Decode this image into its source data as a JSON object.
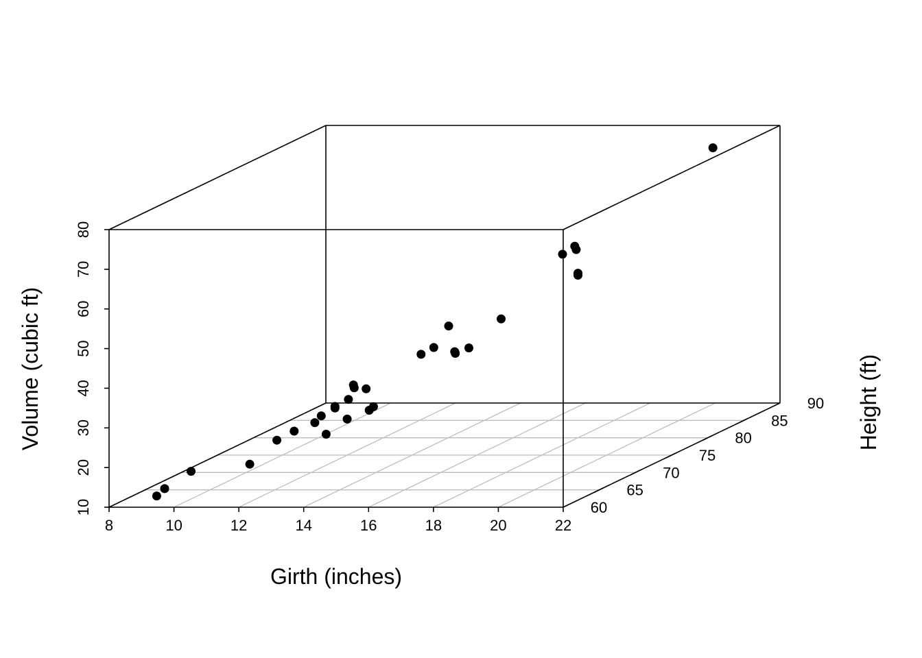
{
  "chart_data": {
    "type": "scatter",
    "subtype": "3d-scatter",
    "title": "",
    "xlabel": "Girth (inches)",
    "ylabel": "Height (ft)",
    "zlabel": "Volume (cubic ft)",
    "xlim": [
      8,
      22
    ],
    "ylim": [
      60,
      90
    ],
    "zlim": [
      10,
      80
    ],
    "xticks": [
      "8",
      "10",
      "12",
      "14",
      "16",
      "18",
      "20",
      "22"
    ],
    "yticks": [
      "60",
      "65",
      "70",
      "75",
      "80",
      "85",
      "90"
    ],
    "zticks": [
      "10",
      "20",
      "30",
      "40",
      "50",
      "60",
      "70",
      "80"
    ],
    "grid": "floor",
    "point_color": "#000000",
    "grid_color": "#bebebe",
    "points": [
      {
        "x": 8.3,
        "y": 70,
        "z": 10.3
      },
      {
        "x": 8.6,
        "y": 65,
        "z": 10.3
      },
      {
        "x": 8.8,
        "y": 63,
        "z": 10.2
      },
      {
        "x": 10.5,
        "y": 72,
        "z": 16.4
      },
      {
        "x": 10.7,
        "y": 81,
        "z": 18.8
      },
      {
        "x": 10.8,
        "y": 83,
        "z": 19.7
      },
      {
        "x": 11.0,
        "y": 66,
        "z": 15.6
      },
      {
        "x": 11.0,
        "y": 75,
        "z": 18.2
      },
      {
        "x": 11.1,
        "y": 80,
        "z": 22.6
      },
      {
        "x": 11.2,
        "y": 75,
        "z": 19.9
      },
      {
        "x": 11.3,
        "y": 79,
        "z": 24.2
      },
      {
        "x": 11.4,
        "y": 76,
        "z": 21.0
      },
      {
        "x": 11.4,
        "y": 76,
        "z": 21.4
      },
      {
        "x": 11.7,
        "y": 69,
        "z": 21.3
      },
      {
        "x": 12.0,
        "y": 75,
        "z": 19.1
      },
      {
        "x": 12.9,
        "y": 74,
        "z": 22.2
      },
      {
        "x": 12.9,
        "y": 85,
        "z": 33.8
      },
      {
        "x": 13.3,
        "y": 86,
        "z": 27.4
      },
      {
        "x": 13.7,
        "y": 71,
        "z": 25.7
      },
      {
        "x": 13.8,
        "y": 64,
        "z": 24.9
      },
      {
        "x": 14.0,
        "y": 78,
        "z": 34.5
      },
      {
        "x": 14.2,
        "y": 80,
        "z": 31.7
      },
      {
        "x": 14.5,
        "y": 74,
        "z": 36.3
      },
      {
        "x": 16.0,
        "y": 72,
        "z": 38.3
      },
      {
        "x": 16.3,
        "y": 77,
        "z": 42.6
      },
      {
        "x": 17.3,
        "y": 81,
        "z": 55.4
      },
      {
        "x": 17.5,
        "y": 82,
        "z": 55.7
      },
      {
        "x": 17.9,
        "y": 80,
        "z": 58.3
      },
      {
        "x": 18.0,
        "y": 80,
        "z": 51.5
      },
      {
        "x": 18.0,
        "y": 80,
        "z": 51.0
      },
      {
        "x": 20.6,
        "y": 87,
        "z": 77.0
      }
    ]
  }
}
